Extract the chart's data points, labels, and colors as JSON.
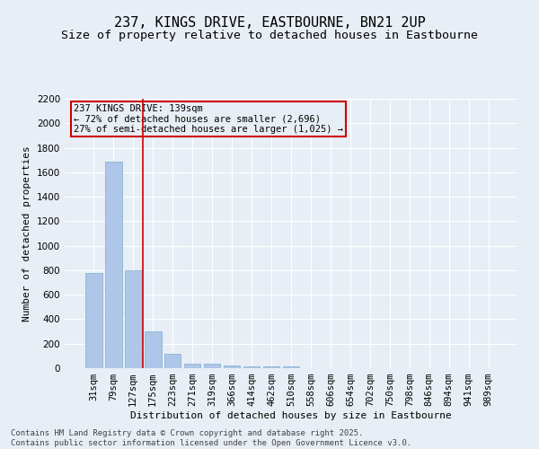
{
  "title": "237, KINGS DRIVE, EASTBOURNE, BN21 2UP",
  "subtitle": "Size of property relative to detached houses in Eastbourne",
  "xlabel": "Distribution of detached houses by size in Eastbourne",
  "ylabel": "Number of detached properties",
  "categories": [
    "31sqm",
    "79sqm",
    "127sqm",
    "175sqm",
    "223sqm",
    "271sqm",
    "319sqm",
    "366sqm",
    "414sqm",
    "462sqm",
    "510sqm",
    "558sqm",
    "606sqm",
    "654sqm",
    "702sqm",
    "750sqm",
    "798sqm",
    "846sqm",
    "894sqm",
    "941sqm",
    "989sqm"
  ],
  "values": [
    775,
    1690,
    800,
    300,
    120,
    40,
    35,
    25,
    18,
    12,
    18,
    0,
    0,
    0,
    0,
    0,
    0,
    0,
    0,
    0,
    0
  ],
  "bar_color": "#aec6e8",
  "bar_edgecolor": "#7aadd4",
  "vline_color": "#cc0000",
  "vline_x_index": 2,
  "annotation_text": "237 KINGS DRIVE: 139sqm\n← 72% of detached houses are smaller (2,696)\n27% of semi-detached houses are larger (1,025) →",
  "annotation_box_color": "#cc0000",
  "ylim": [
    0,
    2200
  ],
  "yticks": [
    0,
    200,
    400,
    600,
    800,
    1000,
    1200,
    1400,
    1600,
    1800,
    2000,
    2200
  ],
  "bg_color": "#e8eef5",
  "grid_color": "#ffffff",
  "footer1": "Contains HM Land Registry data © Crown copyright and database right 2025.",
  "footer2": "Contains public sector information licensed under the Open Government Licence v3.0.",
  "title_fontsize": 11,
  "subtitle_fontsize": 9.5,
  "axis_label_fontsize": 8,
  "tick_fontsize": 7.5,
  "annotation_fontsize": 7.5,
  "footer_fontsize": 6.5
}
